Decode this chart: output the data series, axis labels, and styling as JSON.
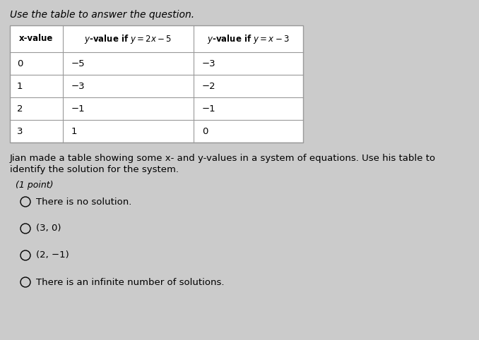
{
  "title_top": "Use the table to answer the question.",
  "rows": [
    [
      "0",
      "−5",
      "−3"
    ],
    [
      "1",
      "−3",
      "−2"
    ],
    [
      "2",
      "−1",
      "−1"
    ],
    [
      "3",
      "1",
      "0"
    ]
  ],
  "paragraph_line1": "Jian made a table showing some x- and y-values in a system of equations. Use his table to",
  "paragraph_line2": "identify the solution for the system.",
  "point_label": "(1 point)",
  "choices": [
    "There is no solution.",
    "(3, 0)",
    "(2, −1)",
    "There is an infinite number of solutions."
  ],
  "bg_color": "#cbcbcb",
  "table_bg": "#ffffff",
  "text_color": "#000000",
  "border_color": "#999999",
  "fig_width": 6.78,
  "fig_height": 4.82,
  "dpi": 100
}
